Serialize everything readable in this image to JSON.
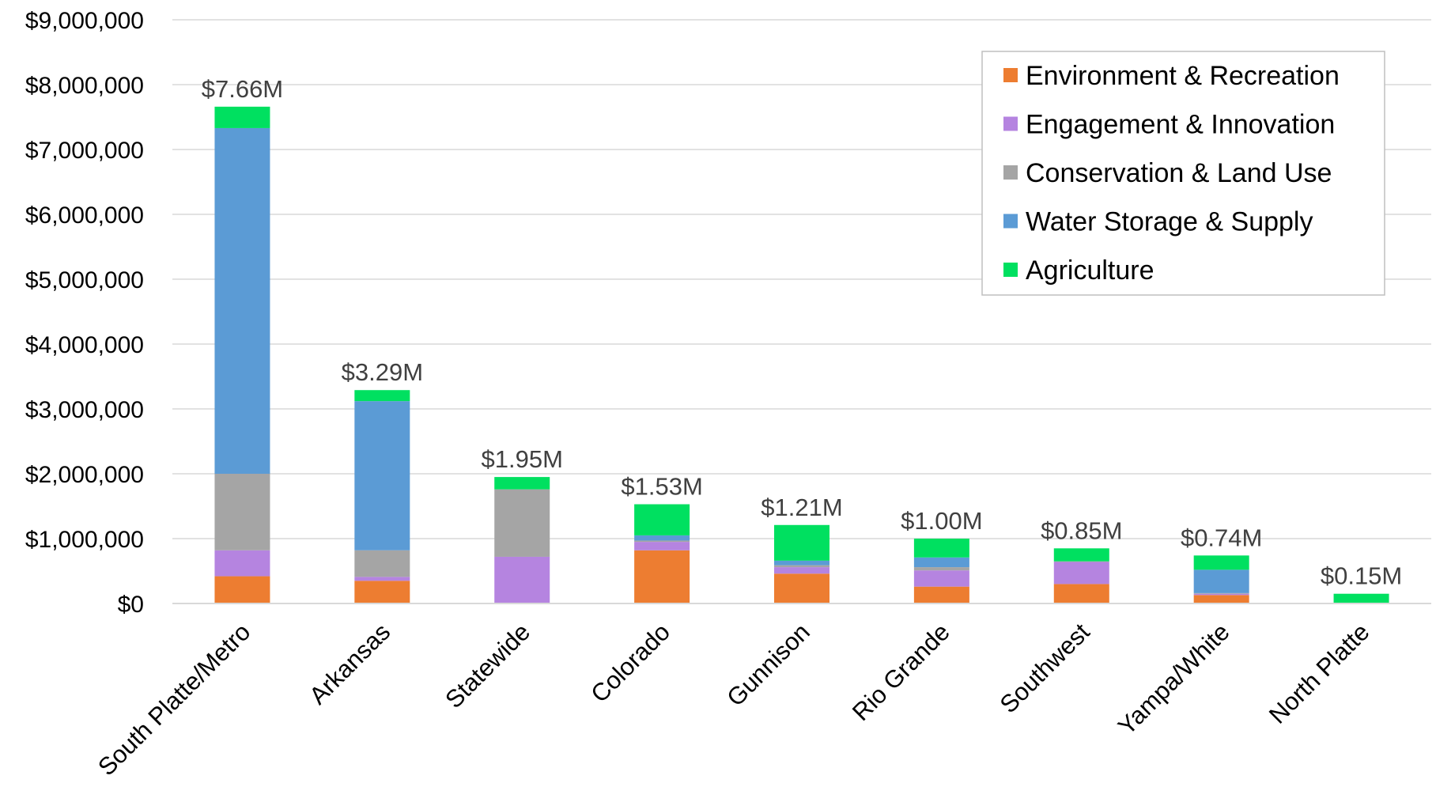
{
  "chart_data": {
    "type": "bar",
    "stacked": true,
    "categories": [
      "South Platte/Metro",
      "Arkansas",
      "Statewide",
      "Colorado",
      "Gunnison",
      "Rio Grande",
      "Southwest",
      "Yampa/White",
      "North Platte"
    ],
    "series": [
      {
        "name": "Environment & Recreation",
        "color": "#ED7D31",
        "values": [
          420000,
          350000,
          0,
          820000,
          460000,
          260000,
          300000,
          130000,
          0
        ]
      },
      {
        "name": "Engagement & Innovation",
        "color": "#B584E0",
        "values": [
          400000,
          60000,
          720000,
          130000,
          100000,
          250000,
          340000,
          20000,
          0
        ]
      },
      {
        "name": "Conservation & Land Use",
        "color": "#A5A5A5",
        "values": [
          1180000,
          410000,
          1040000,
          20000,
          30000,
          50000,
          10000,
          10000,
          0
        ]
      },
      {
        "name": "Water Storage & Supply",
        "color": "#5B9BD5",
        "values": [
          5330000,
          2300000,
          0,
          80000,
          70000,
          150000,
          0,
          360000,
          0
        ]
      },
      {
        "name": "Agriculture",
        "color": "#00E060",
        "values": [
          330000,
          170000,
          190000,
          480000,
          550000,
          290000,
          200000,
          220000,
          150000
        ]
      }
    ],
    "totals": [
      "$7.66M",
      "$3.29M",
      "$1.95M",
      "$1.53M",
      "$1.21M",
      "$1.00M",
      "$0.85M",
      "$0.74M",
      "$0.15M"
    ],
    "yticks": [
      "$0",
      "$1,000,000",
      "$2,000,000",
      "$3,000,000",
      "$4,000,000",
      "$5,000,000",
      "$6,000,000",
      "$7,000,000",
      "$8,000,000",
      "$9,000,000"
    ],
    "ylim": [
      0,
      9000000
    ],
    "grid": true,
    "legend_position": "top-right",
    "title": "",
    "xlabel": "",
    "ylabel": ""
  }
}
